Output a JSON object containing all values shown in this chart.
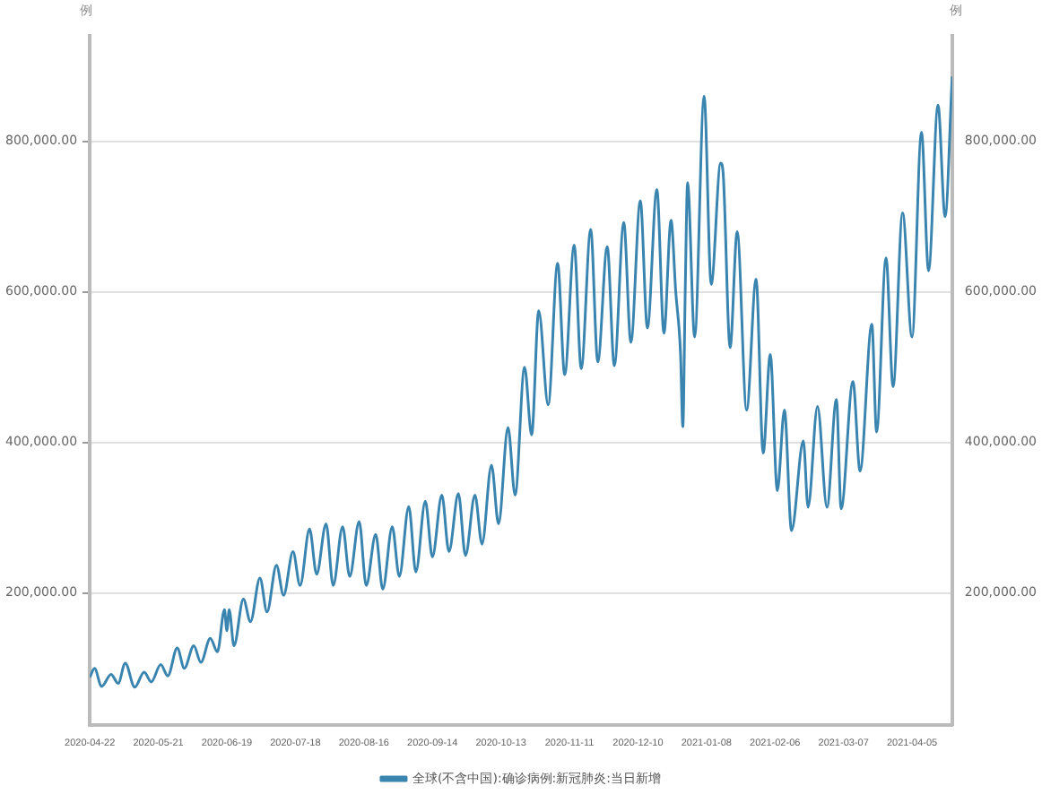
{
  "chart_data": {
    "type": "line",
    "ylabel": "例",
    "y2label": "例",
    "legend": "bottom",
    "grid": "y",
    "marker": "none",
    "line_style": "solid",
    "xlim": [
      "2020-04-22",
      "2021-04-22"
    ],
    "xticks": [
      "2020-04-22",
      "2020-05-21",
      "2020-06-19",
      "2020-07-18",
      "2020-08-16",
      "2020-09-14",
      "2020-10-13",
      "2020-11-11",
      "2020-12-10",
      "2021-01-08",
      "2021-02-06",
      "2021-03-07",
      "2021-04-05"
    ],
    "ylim": [
      25000,
      940000
    ],
    "yticks": [
      {
        "value": 200000,
        "label": "200,000.00"
      },
      {
        "value": 400000,
        "label": "400,000.00"
      },
      {
        "value": 600000,
        "label": "600,000.00"
      },
      {
        "value": 800000,
        "label": "800,000.00"
      }
    ],
    "y2lim": [
      25000,
      940000
    ],
    "y2ticks": [
      {
        "value": 200000,
        "label": "200,000.00"
      },
      {
        "value": 400000,
        "label": "400,000.00"
      },
      {
        "value": 600000,
        "label": "600,000.00"
      },
      {
        "value": 800000,
        "label": "800,000.00"
      }
    ],
    "x": [
      "2020-04-22",
      "2020-04-24",
      "2020-04-27",
      "2020-05-01",
      "2020-05-04",
      "2020-05-07",
      "2020-05-11",
      "2020-05-15",
      "2020-05-18",
      "2020-05-22",
      "2020-05-25",
      "2020-05-29",
      "2020-06-01",
      "2020-06-05",
      "2020-06-08",
      "2020-06-12",
      "2020-06-15",
      "2020-06-18",
      "2020-06-19",
      "2020-06-20",
      "2020-06-22",
      "2020-06-26",
      "2020-06-29",
      "2020-07-03",
      "2020-07-06",
      "2020-07-10",
      "2020-07-13",
      "2020-07-17",
      "2020-07-20",
      "2020-07-24",
      "2020-07-27",
      "2020-07-31",
      "2020-08-03",
      "2020-08-07",
      "2020-08-10",
      "2020-08-14",
      "2020-08-17",
      "2020-08-21",
      "2020-08-24",
      "2020-08-28",
      "2020-08-31",
      "2020-09-04",
      "2020-09-07",
      "2020-09-11",
      "2020-09-14",
      "2020-09-18",
      "2020-09-21",
      "2020-09-25",
      "2020-09-28",
      "2020-10-02",
      "2020-10-05",
      "2020-10-09",
      "2020-10-12",
      "2020-10-16",
      "2020-10-19",
      "2020-10-23",
      "2020-10-26",
      "2020-10-29",
      "2020-11-02",
      "2020-11-06",
      "2020-11-09",
      "2020-11-13",
      "2020-11-16",
      "2020-11-20",
      "2020-11-23",
      "2020-11-27",
      "2020-11-30",
      "2020-12-04",
      "2020-12-07",
      "2020-12-11",
      "2020-12-14",
      "2020-12-18",
      "2020-12-21",
      "2020-12-24",
      "2020-12-26",
      "2020-12-28",
      "2020-12-29",
      "2020-12-30",
      "2020-12-31",
      "2021-01-03",
      "2021-01-07",
      "2021-01-10",
      "2021-01-14",
      "2021-01-15",
      "2021-01-18",
      "2021-01-21",
      "2021-01-25",
      "2021-01-29",
      "2021-02-01",
      "2021-02-04",
      "2021-02-07",
      "2021-02-10",
      "2021-02-13",
      "2021-02-18",
      "2021-02-20",
      "2021-02-24",
      "2021-02-28",
      "2021-03-04",
      "2021-03-06",
      "2021-03-11",
      "2021-03-14",
      "2021-03-19",
      "2021-03-21",
      "2021-03-25",
      "2021-03-28",
      "2021-04-01",
      "2021-04-05",
      "2021-04-09",
      "2021-04-12",
      "2021-04-16",
      "2021-04-19",
      "2021-04-22"
    ],
    "series": [
      {
        "name": "全球(不含中国):确诊病例:新冠肺炎:当日新增",
        "color": "#3a84b0",
        "values": [
          88000,
          100000,
          76000,
          92000,
          80000,
          107000,
          75000,
          95000,
          82000,
          105000,
          90000,
          127000,
          100000,
          130000,
          108000,
          140000,
          122000,
          178000,
          150000,
          178000,
          130000,
          192000,
          162000,
          220000,
          175000,
          237000,
          197000,
          255000,
          210000,
          285000,
          225000,
          292000,
          210000,
          288000,
          222000,
          295000,
          210000,
          278000,
          205000,
          288000,
          222000,
          315000,
          228000,
          322000,
          248000,
          330000,
          255000,
          332000,
          250000,
          330000,
          265000,
          370000,
          292000,
          420000,
          330000,
          500000,
          410000,
          575000,
          450000,
          638000,
          490000,
          662000,
          498000,
          683000,
          507000,
          660000,
          502000,
          692000,
          533000,
          721000,
          552000,
          736000,
          545000,
          695000,
          600000,
          520000,
          421000,
          600000,
          745000,
          540000,
          860000,
          610000,
          771000,
          760000,
          526000,
          680000,
          443000,
          617000,
          386000,
          517000,
          336000,
          443000,
          283000,
          402000,
          314000,
          448000,
          314000,
          457000,
          312000,
          481000,
          362000,
          557000,
          414000,
          645000,
          474000,
          705000,
          540000,
          812000,
          628000,
          848000,
          700000,
          886000
        ]
      }
    ]
  }
}
